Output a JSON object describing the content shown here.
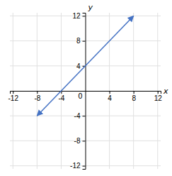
{
  "chart_data": {
    "type": "line",
    "x": [
      -8,
      8
    ],
    "values": [
      -4,
      12
    ],
    "color": "#4472c4",
    "xlim": [
      -12.5,
      12.5
    ],
    "ylim": [
      -12.5,
      12.5
    ],
    "xticks": [
      -12,
      -8,
      -4,
      4,
      8,
      12
    ],
    "yticks": [
      -12,
      -8,
      -4,
      4,
      8,
      12
    ],
    "xlabel": "x",
    "ylabel": "y",
    "grid": true,
    "annotations": [
      {
        "text": "0",
        "x": 0,
        "y": 0
      }
    ]
  }
}
